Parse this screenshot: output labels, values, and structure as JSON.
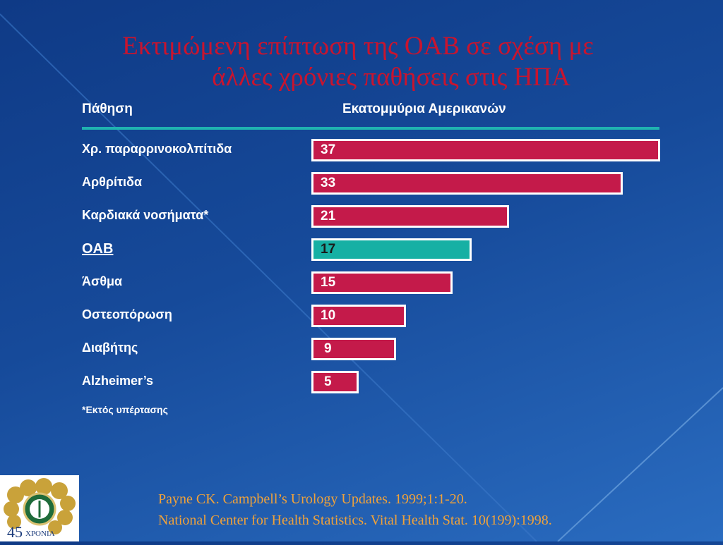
{
  "slide": {
    "title_line1": "Εκτιμώμενη επίπτωση της OAB σε σχέση με",
    "title_line2": "άλλες χρόνιες παθήσεις στις ΗΠΑ",
    "footnote": "*Εκτός υπέρτασης",
    "citation_line1": "Payne CK. Campbell’s Urology Updates. 1999;1:1-20.",
    "citation_line2": "National Center for Health Statistics. Vital Health Stat. 10(199):1998.",
    "logo_text": "45",
    "logo_caption": "ΧΡΟΝΙΑ"
  },
  "chart_data": {
    "type": "bar",
    "orientation": "horizontal",
    "column_header_category": "Πάθηση",
    "column_header_value": "Εκατομμύρια Αμερικανών",
    "categories": [
      "Χρ. παραρρινοκολπίτιδα",
      "Αρθρίτιδα",
      "Καρδιακά νοσήματα*",
      "OAB",
      "Άσθμα",
      "Οστεοπόρωση",
      "Διαβήτης",
      "Alzheimer’s"
    ],
    "values": [
      37,
      33,
      21,
      17,
      15,
      10,
      9,
      5
    ],
    "highlight": "OAB",
    "colors": {
      "bar": "#c41a4a",
      "highlight": "#16b0a4",
      "rule": "#1fb3b0",
      "title": "#c9142e",
      "citation": "#f0a23a"
    },
    "xlim": [
      0,
      37
    ]
  }
}
